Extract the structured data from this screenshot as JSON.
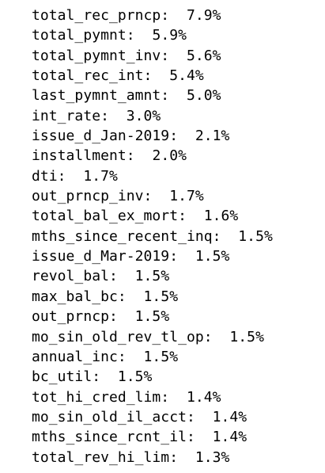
{
  "items": [
    {
      "label": "total_rec_prncp:",
      "value": "7.9%"
    },
    {
      "label": "total_pymnt:",
      "value": "5.9%"
    },
    {
      "label": "total_pymnt_inv:",
      "value": "5.6%"
    },
    {
      "label": "total_rec_int:",
      "value": "5.4%"
    },
    {
      "label": "last_pymnt_amnt:",
      "value": "5.0%"
    },
    {
      "label": "int_rate:",
      "value": "3.0%"
    },
    {
      "label": "issue_d_Jan-2019:",
      "value": "2.1%"
    },
    {
      "label": "installment:",
      "value": "2.0%"
    },
    {
      "label": "dti:",
      "value": "1.7%"
    },
    {
      "label": "out_prncp_inv:",
      "value": "1.7%"
    },
    {
      "label": "total_bal_ex_mort:",
      "value": "1.6%"
    },
    {
      "label": "mths_since_recent_inq:",
      "value": "1.5%"
    },
    {
      "label": "issue_d_Mar-2019:",
      "value": "1.5%"
    },
    {
      "label": "revol_bal:",
      "value": "1.5%"
    },
    {
      "label": "max_bal_bc:",
      "value": "1.5%"
    },
    {
      "label": "out_prncp:",
      "value": "1.5%"
    },
    {
      "label": "mo_sin_old_rev_tl_op:",
      "value": "1.5%"
    },
    {
      "label": "annual_inc:",
      "value": "1.5%"
    },
    {
      "label": "bc_util:",
      "value": "1.5%"
    },
    {
      "label": "tot_hi_cred_lim:",
      "value": "1.4%"
    },
    {
      "label": "mo_sin_old_il_acct:",
      "value": "1.4%"
    },
    {
      "label": "mths_since_rcnt_il:",
      "value": "1.4%"
    },
    {
      "label": "total_rev_hi_lim:",
      "value": "1.3%"
    }
  ]
}
